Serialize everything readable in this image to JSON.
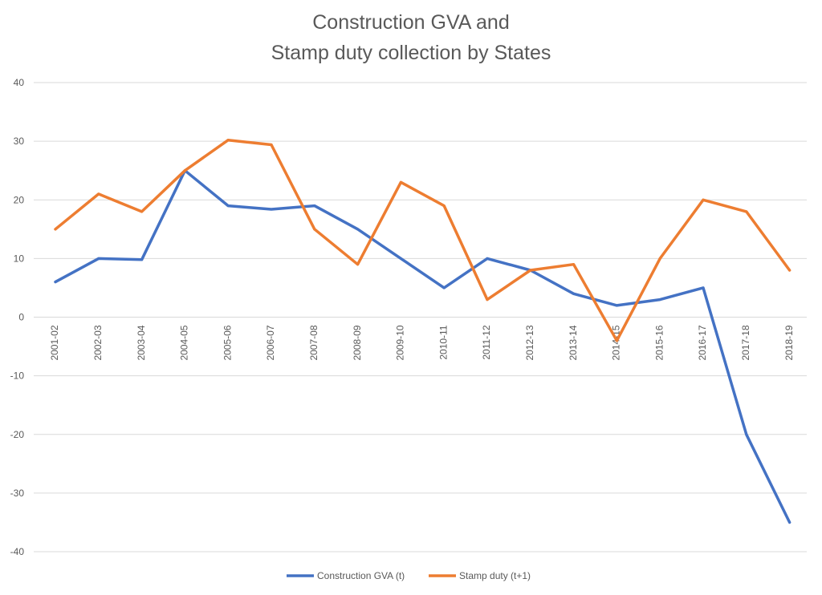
{
  "chart_data": {
    "type": "line",
    "title_lines": [
      "Construction GVA and",
      "Stamp duty collection by States"
    ],
    "categories": [
      "2001-02",
      "2002-03",
      "2003-04",
      "2004-05",
      "2005-06",
      "2006-07",
      "2007-08",
      "2008-09",
      "2009-10",
      "2010-11",
      "2011-12",
      "2012-13",
      "2013-14",
      "2014-15",
      "2015-16",
      "2016-17",
      "2017-18",
      "2018-19"
    ],
    "series": [
      {
        "name": "Construction GVA (t)",
        "color": "#4472C4",
        "values": [
          6,
          10,
          9.8,
          25,
          19,
          18.4,
          19,
          15,
          10,
          5,
          10,
          8,
          4,
          2,
          3,
          5,
          -20,
          -35
        ]
      },
      {
        "name": "Stamp duty (t+1)",
        "color": "#ED7D31",
        "values": [
          15,
          21,
          18,
          25,
          30.2,
          29.4,
          15,
          9,
          23,
          19,
          3,
          8,
          9,
          -4,
          10,
          20,
          18,
          8
        ]
      }
    ],
    "ylim": [
      -40,
      40
    ],
    "yticks": [
      40,
      30,
      20,
      10,
      0,
      -10,
      -20,
      -30,
      -40
    ],
    "grid": true,
    "legend_position": "bottom"
  }
}
